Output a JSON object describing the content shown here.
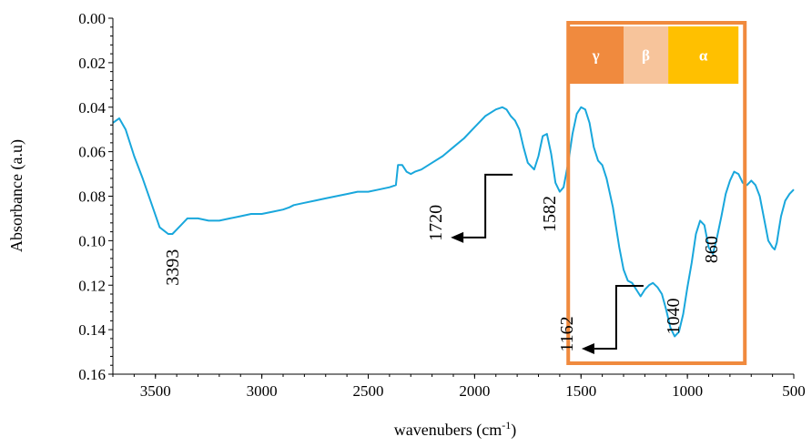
{
  "chart_data": {
    "type": "line",
    "title": "",
    "xlabel": "wavenubers (cm",
    "xlabel_sup": "-1",
    "xlabel_end": ")",
    "ylabel": "Absorbance (a.u)",
    "xlim": [
      3700,
      500
    ],
    "ylim": [
      0.0,
      0.16
    ],
    "y_inverted": true,
    "x_reversed": true,
    "xticks": [
      3500,
      3000,
      2500,
      2000,
      1500,
      1000,
      500
    ],
    "xtick_labels": [
      "3500",
      "3000",
      "2500",
      "2000",
      "1500",
      "1000",
      "500"
    ],
    "yticks": [
      0.0,
      0.02,
      0.04,
      0.06,
      0.08,
      0.1,
      0.12,
      0.14,
      0.16
    ],
    "ytick_labels": [
      "0.00",
      "0.02",
      "0.04",
      "0.06",
      "0.08",
      "0.10",
      "0.12",
      "0.14",
      "0.16"
    ],
    "grid": false,
    "series": [
      {
        "color": "#19a7dc",
        "x": [
          3700,
          3670,
          3640,
          3600,
          3560,
          3520,
          3480,
          3440,
          3420,
          3400,
          3380,
          3350,
          3300,
          3250,
          3200,
          3150,
          3100,
          3050,
          3000,
          2950,
          2900,
          2870,
          2850,
          2800,
          2750,
          2700,
          2650,
          2600,
          2550,
          2500,
          2450,
          2400,
          2370,
          2360,
          2340,
          2320,
          2300,
          2280,
          2250,
          2200,
          2150,
          2100,
          2050,
          2000,
          1950,
          1900,
          1870,
          1850,
          1830,
          1810,
          1790,
          1770,
          1750,
          1720,
          1700,
          1680,
          1660,
          1640,
          1620,
          1600,
          1582,
          1560,
          1540,
          1520,
          1500,
          1480,
          1460,
          1440,
          1420,
          1400,
          1380,
          1350,
          1320,
          1300,
          1280,
          1260,
          1240,
          1220,
          1200,
          1180,
          1162,
          1140,
          1120,
          1100,
          1080,
          1060,
          1040,
          1020,
          1000,
          980,
          960,
          940,
          920,
          900,
          880,
          860,
          840,
          820,
          800,
          780,
          760,
          740,
          720,
          700,
          680,
          660,
          640,
          620,
          600,
          590,
          580,
          570,
          560,
          540,
          520,
          500
        ],
        "y": [
          0.047,
          0.045,
          0.05,
          0.062,
          0.072,
          0.083,
          0.094,
          0.097,
          0.097,
          0.095,
          0.093,
          0.09,
          0.09,
          0.091,
          0.091,
          0.09,
          0.089,
          0.088,
          0.088,
          0.087,
          0.086,
          0.085,
          0.084,
          0.083,
          0.082,
          0.081,
          0.08,
          0.079,
          0.078,
          0.078,
          0.077,
          0.076,
          0.075,
          0.066,
          0.066,
          0.069,
          0.07,
          0.069,
          0.068,
          0.065,
          0.062,
          0.058,
          0.054,
          0.049,
          0.044,
          0.041,
          0.04,
          0.041,
          0.044,
          0.046,
          0.05,
          0.058,
          0.065,
          0.068,
          0.062,
          0.053,
          0.052,
          0.061,
          0.074,
          0.078,
          0.076,
          0.065,
          0.052,
          0.043,
          0.04,
          0.041,
          0.047,
          0.058,
          0.064,
          0.066,
          0.072,
          0.085,
          0.103,
          0.113,
          0.118,
          0.119,
          0.122,
          0.125,
          0.122,
          0.12,
          0.119,
          0.121,
          0.124,
          0.131,
          0.139,
          0.143,
          0.141,
          0.133,
          0.121,
          0.11,
          0.097,
          0.091,
          0.093,
          0.103,
          0.106,
          0.098,
          0.089,
          0.079,
          0.073,
          0.069,
          0.07,
          0.074,
          0.075,
          0.073,
          0.075,
          0.08,
          0.09,
          0.1,
          0.103,
          0.104,
          0.101,
          0.095,
          0.089,
          0.082,
          0.079,
          0.077
        ]
      }
    ],
    "annotations": [
      {
        "text": "3393",
        "x": 3393,
        "y": 0.112
      },
      {
        "text": "1720",
        "x": 2155,
        "y": 0.092,
        "arrow": true
      },
      {
        "text": "1582",
        "x": 1620,
        "y": 0.088
      },
      {
        "text": "1162",
        "x": 1540,
        "y": 0.142,
        "arrow": true
      },
      {
        "text": "1040",
        "x": 1040,
        "y": 0.134
      },
      {
        "text": "860",
        "x": 860,
        "y": 0.104
      }
    ],
    "regions": [
      {
        "label": "γ",
        "color": "#f08a3e",
        "x_from": 1560,
        "x_to": 1300
      },
      {
        "label": "β",
        "color": "#f7c49b",
        "x_from": 1300,
        "x_to": 1090
      },
      {
        "label": "α",
        "color": "#ffc000",
        "x_from": 1090,
        "x_to": 760
      }
    ],
    "region_box": {
      "color": "#f08a3e",
      "x_from": 1560,
      "x_to": 730
    }
  }
}
